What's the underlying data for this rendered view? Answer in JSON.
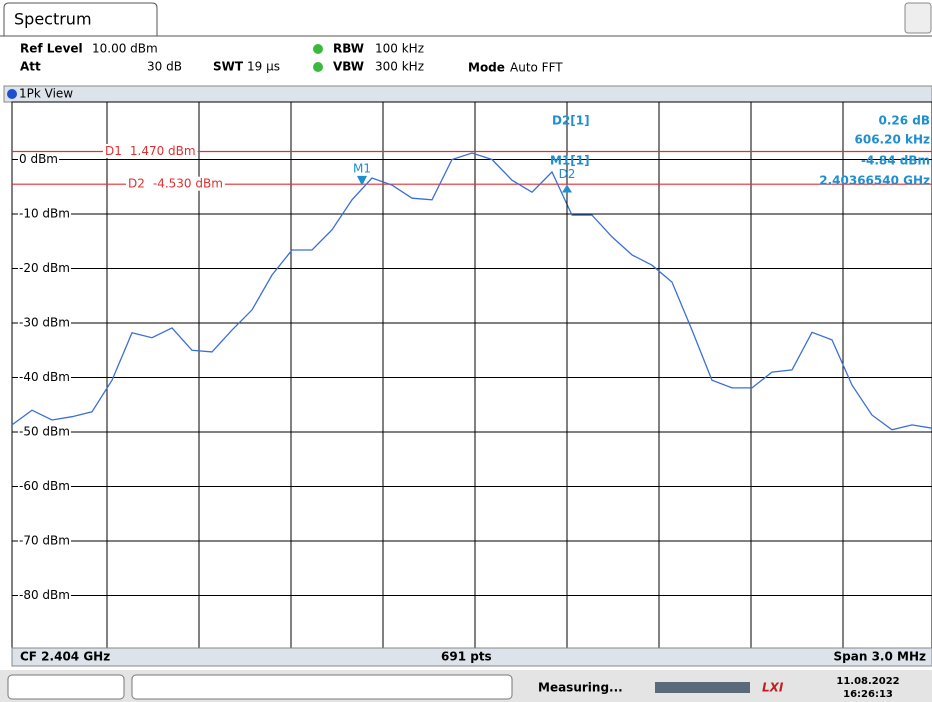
{
  "tab": "Spectrum",
  "settings": {
    "ref_level_label": "Ref Level",
    "ref_level": "10.00 dBm",
    "att_label": "Att",
    "att": "30 dB",
    "swt_label": "SWT",
    "swt": "19 µs",
    "rbw_label": "RBW",
    "rbw": "100 kHz",
    "vbw_label": "VBW",
    "vbw": "300 kHz",
    "mode_label": "Mode",
    "mode": "Auto FFT"
  },
  "view": "1Pk View",
  "marker_table": {
    "d2_name": "D2[1]",
    "d2_level": "0.26 dB",
    "d2_freq": "606.20 kHz",
    "m1_name": "M1[1]",
    "m1_level": "-4.84 dBm",
    "m1_freq": "2.40366540 GHz"
  },
  "footer": {
    "cf": "CF 2.404 GHz",
    "points": "691 pts",
    "span": "Span 3.0 MHz"
  },
  "status": {
    "state": "Measuring...",
    "lxi": "LXI",
    "date": "11.08.2022",
    "time": "16:26:13"
  },
  "chart_data": {
    "type": "line",
    "ylim": [
      -90,
      10
    ],
    "yticks": [
      {
        "value": 0,
        "label": "0 dBm"
      },
      {
        "value": -10,
        "label": "-10 dBm"
      },
      {
        "value": -20,
        "label": "-20 dBm"
      },
      {
        "value": -30,
        "label": "-30 dBm"
      },
      {
        "value": -40,
        "label": "-40 dBm"
      },
      {
        "value": -50,
        "label": "-50 dBm"
      },
      {
        "value": -60,
        "label": "-60 dBm"
      },
      {
        "value": -70,
        "label": "-70 dBm"
      },
      {
        "value": -80,
        "label": "-80 dBm"
      }
    ],
    "grid": true,
    "series": [
      {
        "name": "1Pk",
        "color": "#3a6fd8",
        "values": [
          -48.7,
          -46,
          -47.8,
          -47.2,
          -46.3,
          -40.5,
          -31.8,
          -32.7,
          -30.9,
          -35,
          -35.3,
          -31.3,
          -27.6,
          -21.2,
          -16.6,
          -16.6,
          -12.9,
          -7.4,
          -3.4,
          -4.7,
          -7.1,
          -7.4,
          0,
          1.2,
          0,
          -3.8,
          -6,
          -2.3,
          -10.2,
          -10.2,
          -14.2,
          -17.5,
          -19.4,
          -22.5,
          -31.3,
          -40.5,
          -41.9,
          -41.9,
          -39,
          -38.6,
          -31.7,
          -33.1,
          -41.4,
          -46.9,
          -49.6,
          -48.7,
          -49.3
        ]
      }
    ],
    "display_lines": [
      {
        "name": "D1",
        "value": 1.47,
        "label": "1.470 dBm",
        "color": "#e03030"
      },
      {
        "name": "D2",
        "value": -4.53,
        "label": "-4.530 dBm",
        "color": "#e03030"
      }
    ],
    "markers": [
      {
        "name": "M1",
        "value": -4.84
      },
      {
        "name": "D2",
        "value": -4.58
      }
    ]
  }
}
